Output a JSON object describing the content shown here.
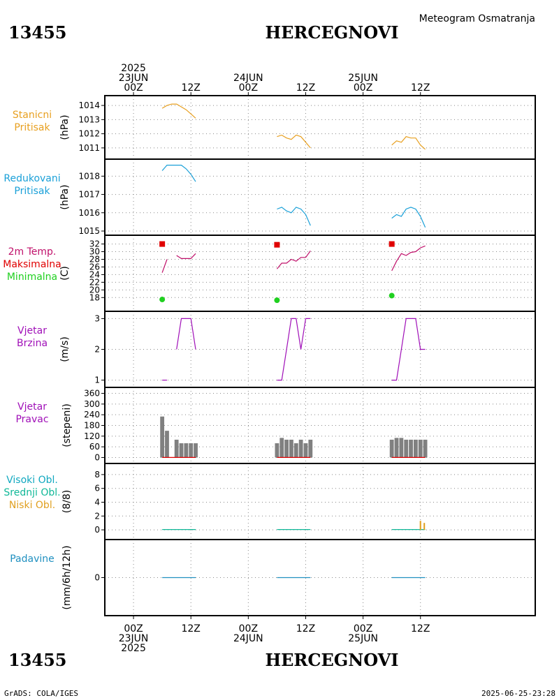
{
  "header": {
    "station_id": "13455",
    "station_name": "HERCEGNOVI",
    "subtitle": "Meteogram Osmatranja"
  },
  "footer": {
    "credit": "GrADS: COLA/IGES",
    "timestamp": "2025-06-25-23:28"
  },
  "colors": {
    "pressure": "#e8a020",
    "reduced": "#1aa0d8",
    "temp": "#c0106a",
    "tmax": "#e00000",
    "tmin": "#20d020",
    "wind": "#a010b8",
    "bar": "#808080",
    "cloud_high": "#10a8c0",
    "cloud_mid": "#10b898",
    "cloud_low": "#e0a020",
    "precip": "#2090c0"
  },
  "chart_data": {
    "type": "meteogram",
    "x_range_hours": [
      -6,
      84
    ],
    "time_ticks_top": [
      {
        "hour": 0,
        "lines": [
          "2025",
          "23JUN",
          "00Z"
        ]
      },
      {
        "hour": 12,
        "lines": [
          "12Z"
        ]
      },
      {
        "hour": 24,
        "lines": [
          "24JUN",
          "00Z"
        ]
      },
      {
        "hour": 36,
        "lines": [
          "12Z"
        ]
      },
      {
        "hour": 48,
        "lines": [
          "25JUN",
          "00Z"
        ]
      },
      {
        "hour": 60,
        "lines": [
          "12Z"
        ]
      }
    ],
    "time_ticks_bottom": [
      {
        "hour": 0,
        "lines": [
          "00Z",
          "23JUN",
          "2025"
        ]
      },
      {
        "hour": 12,
        "lines": [
          "12Z"
        ]
      },
      {
        "hour": 24,
        "lines": [
          "00Z",
          "24JUN"
        ]
      },
      {
        "hour": 36,
        "lines": [
          "12Z"
        ]
      },
      {
        "hour": 48,
        "lines": [
          "00Z",
          "25JUN"
        ]
      },
      {
        "hour": 60,
        "lines": [
          "12Z"
        ]
      }
    ],
    "panels": [
      {
        "id": "station_pressure",
        "label_lines": [
          "Stanicni",
          "Pritisak"
        ],
        "label_color_keys": [
          "pressure",
          "pressure"
        ],
        "ylabel": "(hPa)",
        "ylim": [
          1010.6,
          1014.3
        ],
        "yticks": [
          1011,
          1012,
          1013,
          1014
        ],
        "series": [
          {
            "kind": "line",
            "color_key": "pressure",
            "x": [
              6,
              7,
              8,
              9,
              10,
              11,
              12,
              13
            ],
            "y": [
              1013.8,
              1014.0,
              1014.1,
              1014.1,
              1013.9,
              1013.7,
              1013.4,
              1013.1
            ]
          },
          {
            "kind": "line",
            "color_key": "pressure",
            "x": [
              30,
              31,
              32,
              33,
              34,
              35,
              36,
              37
            ],
            "y": [
              1011.8,
              1011.9,
              1011.7,
              1011.6,
              1011.9,
              1011.8,
              1011.4,
              1011.0
            ]
          },
          {
            "kind": "line",
            "color_key": "pressure",
            "x": [
              54,
              55,
              56,
              57,
              58,
              59,
              60,
              61
            ],
            "y": [
              1011.2,
              1011.5,
              1011.4,
              1011.8,
              1011.7,
              1011.7,
              1011.2,
              1010.9
            ]
          }
        ]
      },
      {
        "id": "reduced_pressure",
        "label_lines": [
          "Redukovani",
          "Pritisak"
        ],
        "label_color_keys": [
          "reduced",
          "reduced"
        ],
        "ylabel": "(hPa)",
        "ylim": [
          1015.0,
          1018.7
        ],
        "yticks": [
          1015,
          1016,
          1017,
          1018
        ],
        "series": [
          {
            "kind": "line",
            "color_key": "reduced",
            "x": [
              6,
              7,
              8,
              9,
              10,
              11,
              12,
              13
            ],
            "y": [
              1018.3,
              1018.6,
              1018.6,
              1018.6,
              1018.6,
              1018.4,
              1018.1,
              1017.7
            ]
          },
          {
            "kind": "line",
            "color_key": "reduced",
            "x": [
              30,
              31,
              32,
              33,
              34,
              35,
              36,
              37
            ],
            "y": [
              1016.2,
              1016.3,
              1016.1,
              1016.0,
              1016.3,
              1016.2,
              1015.9,
              1015.3
            ]
          },
          {
            "kind": "line",
            "color_key": "reduced",
            "x": [
              54,
              55,
              56,
              57,
              58,
              59,
              60,
              61
            ],
            "y": [
              1015.7,
              1015.9,
              1015.8,
              1016.2,
              1016.3,
              1016.2,
              1015.8,
              1015.2
            ]
          }
        ]
      },
      {
        "id": "temperature",
        "label_lines": [
          "2m Temp.",
          "Maksimalna",
          "Minimalna"
        ],
        "label_color_keys": [
          "temp",
          "tmax",
          "tmin"
        ],
        "ylabel": "(C)",
        "ylim": [
          15.5,
          33.2
        ],
        "yticks": [
          18,
          20,
          22,
          24,
          26,
          28,
          30,
          32
        ],
        "series": [
          {
            "kind": "line",
            "color_key": "temp",
            "x": [
              6,
              7
            ],
            "y": [
              24.5,
              28.0
            ]
          },
          {
            "kind": "line",
            "color_key": "temp",
            "x": [
              9,
              10,
              11,
              12,
              13
            ],
            "y": [
              29.0,
              28.2,
              28.2,
              28.2,
              29.5
            ]
          },
          {
            "kind": "line",
            "color_key": "temp",
            "x": [
              30,
              31,
              32,
              33,
              34,
              35,
              36,
              37
            ],
            "y": [
              25.5,
              27.0,
              27.0,
              28.0,
              27.5,
              28.5,
              28.5,
              30.2
            ]
          },
          {
            "kind": "line",
            "color_key": "temp",
            "x": [
              54,
              55,
              56,
              57,
              58,
              59,
              60,
              61
            ],
            "y": [
              25.0,
              27.5,
              29.5,
              29.0,
              29.8,
              30.0,
              31.0,
              31.5
            ]
          },
          {
            "kind": "points",
            "marker": "square",
            "color_key": "tmax",
            "x": [
              6,
              30,
              54
            ],
            "y": [
              32.0,
              31.8,
              32.0
            ]
          },
          {
            "kind": "points",
            "marker": "circle",
            "color_key": "tmin",
            "x": [
              6,
              30,
              54
            ],
            "y": [
              17.5,
              17.3,
              18.5
            ]
          }
        ]
      },
      {
        "id": "wind_speed",
        "label_lines": [
          "Vjetar",
          "Brzina"
        ],
        "label_color_keys": [
          "wind",
          "wind"
        ],
        "ylabel": "(m/s)",
        "ylim": [
          0.9,
          3.1
        ],
        "yticks": [
          1,
          2,
          3
        ],
        "series": [
          {
            "kind": "line",
            "color_key": "wind",
            "x": [
              6,
              7
            ],
            "y": [
              1,
              1
            ]
          },
          {
            "kind": "line",
            "color_key": "wind",
            "x": [
              9,
              10,
              11,
              12,
              13
            ],
            "y": [
              2,
              3,
              3,
              3,
              2
            ]
          },
          {
            "kind": "line",
            "color_key": "wind",
            "x": [
              30,
              31,
              32,
              33,
              34,
              35,
              36,
              37
            ],
            "y": [
              1,
              1,
              2,
              3,
              3,
              2,
              3,
              3
            ]
          },
          {
            "kind": "line",
            "color_key": "wind",
            "x": [
              54,
              55,
              56,
              57,
              58,
              59,
              60,
              61
            ],
            "y": [
              1,
              1,
              2,
              3,
              3,
              3,
              2,
              2
            ]
          }
        ]
      },
      {
        "id": "wind_direction",
        "label_lines": [
          "Vjetar",
          "Pravac"
        ],
        "label_color_keys": [
          "wind",
          "wind"
        ],
        "ylabel": "(stepeni)",
        "ylim": [
          -10,
          370
        ],
        "yticks": [
          0,
          60,
          120,
          180,
          240,
          300,
          360
        ],
        "series": [
          {
            "kind": "bars",
            "color_key": "bar",
            "width_hours": 0.85,
            "x": [
              6,
              7,
              9,
              10,
              11,
              12,
              13,
              30,
              31,
              32,
              33,
              34,
              35,
              36,
              37,
              54,
              55,
              56,
              57,
              58,
              59,
              60,
              61
            ],
            "y": [
              230,
              150,
              100,
              80,
              80,
              80,
              80,
              80,
              110,
              100,
              100,
              80,
              100,
              80,
              100,
              100,
              110,
              110,
              100,
              100,
              100,
              100,
              100
            ]
          },
          {
            "kind": "line",
            "color_key": "tmax",
            "x": [
              6,
              13
            ],
            "y": [
              0,
              0
            ]
          },
          {
            "kind": "line",
            "color_key": "tmax",
            "x": [
              30,
              37
            ],
            "y": [
              0,
              0
            ]
          },
          {
            "kind": "line",
            "color_key": "tmax",
            "x": [
              54,
              61
            ],
            "y": [
              0,
              0
            ]
          }
        ]
      },
      {
        "id": "clouds",
        "label_lines": [
          "Visoki Obl.",
          "Srednji Obl.",
          "Niski Obl."
        ],
        "label_color_keys": [
          "cloud_high",
          "cloud_mid",
          "cloud_low"
        ],
        "ylabel": "(8/8)",
        "ylim": [
          -0.8,
          9.0
        ],
        "yticks": [
          0,
          2,
          4,
          6,
          8
        ],
        "series": [
          {
            "kind": "line",
            "color_key": "cloud_mid",
            "x": [
              6,
              13
            ],
            "y": [
              0.05,
              0.05
            ]
          },
          {
            "kind": "line",
            "color_key": "cloud_mid",
            "x": [
              30,
              37
            ],
            "y": [
              0.05,
              0.05
            ]
          },
          {
            "kind": "line",
            "color_key": "cloud_mid",
            "x": [
              54,
              61
            ],
            "y": [
              0.05,
              0.05
            ]
          },
          {
            "kind": "bars",
            "color_key": "cloud_low",
            "width_hours": 0.3,
            "x": [
              60.0,
              60.8
            ],
            "y": [
              1.3,
              1.0
            ]
          }
        ]
      },
      {
        "id": "precipitation",
        "label_lines": [
          "Padavine"
        ],
        "label_color_keys": [
          "precip"
        ],
        "ylabel": "(mm/6h/12h)",
        "ylim": [
          -5,
          5
        ],
        "yticks": [
          0
        ],
        "series": [
          {
            "kind": "line",
            "color_key": "precip",
            "x": [
              6,
              13
            ],
            "y": [
              0,
              0
            ]
          },
          {
            "kind": "line",
            "color_key": "precip",
            "x": [
              30,
              37
            ],
            "y": [
              0,
              0
            ]
          },
          {
            "kind": "line",
            "color_key": "precip",
            "x": [
              54,
              61
            ],
            "y": [
              0,
              0
            ]
          }
        ]
      }
    ]
  }
}
